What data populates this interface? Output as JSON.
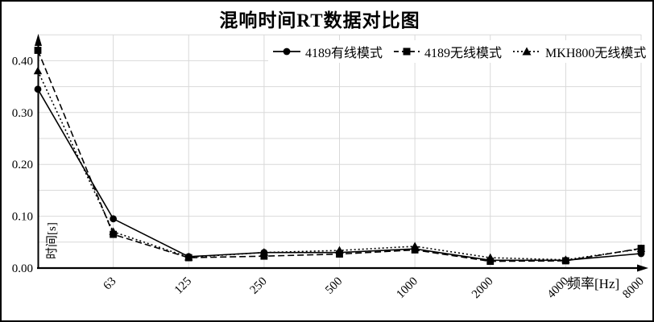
{
  "page": {
    "background": "#ffffff",
    "frame_border_color": "#000000"
  },
  "chart": {
    "grid_color": "#d9d9d9",
    "axis_color": "#000000",
    "series_color": "#000000",
    "text_color": "#000000"
  },
  "chart_data": {
    "type": "line",
    "title": "混响时间RT数据对比图",
    "xlabel": "频率[Hz]",
    "ylabel": "时间[s]",
    "categories": [
      "",
      "63",
      "125",
      "250",
      "500",
      "1000",
      "2000",
      "4000",
      "8000"
    ],
    "ylim": [
      0,
      0.45
    ],
    "gridline_interval": 0.05,
    "grid": true,
    "legend_position": "top-inside",
    "y_ticks": [
      {
        "label": "0.00",
        "value": 0.0
      },
      {
        "label": "0.10",
        "value": 0.1
      },
      {
        "label": "0.20",
        "value": 0.2
      },
      {
        "label": "0.30",
        "value": 0.3
      },
      {
        "label": "0.40",
        "value": 0.4
      }
    ],
    "series": [
      {
        "name": "4189有线模式",
        "marker": "circle",
        "line_style": "solid",
        "values": [
          0.345,
          0.095,
          0.022,
          0.03,
          0.03,
          0.037,
          0.015,
          0.015,
          0.028
        ]
      },
      {
        "name": "4189无线模式",
        "marker": "square",
        "line_style": "dashed",
        "values": [
          0.42,
          0.065,
          0.02,
          0.023,
          0.027,
          0.035,
          0.013,
          0.014,
          0.038
        ]
      },
      {
        "name": "MKH800无线模式",
        "marker": "triangle",
        "line_style": "dotted",
        "values": [
          0.38,
          0.07,
          0.021,
          0.03,
          0.034,
          0.042,
          0.02,
          0.016,
          0.037
        ]
      }
    ]
  }
}
